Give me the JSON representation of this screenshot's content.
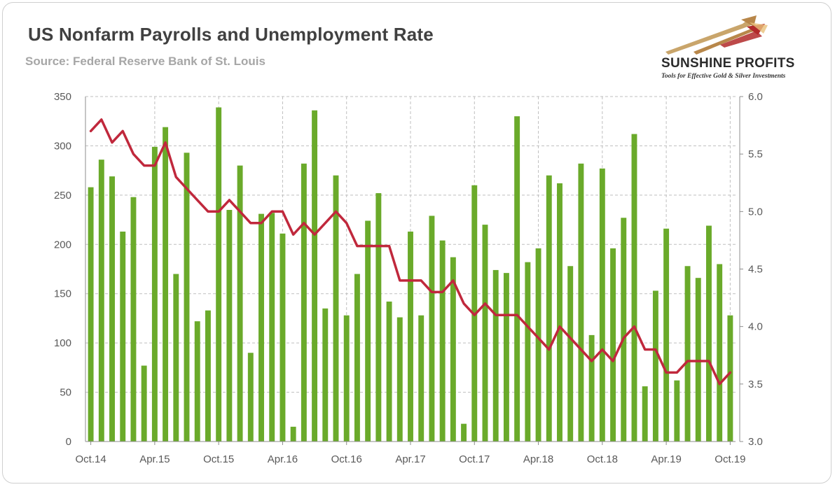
{
  "header": {
    "title": "US Nonfarm Payrolls and Unemployment Rate",
    "subtitle": "Source: Federal Reserve Bank of St. Louis"
  },
  "logo": {
    "name": "SUNSHINE PROFITS",
    "tagline": "Tools for Effective Gold & Silver Investments"
  },
  "chart_data": {
    "type": "bar",
    "x_tick_labels": [
      "Oct.14",
      "Apr.15",
      "Oct.15",
      "Apr.16",
      "Oct.16",
      "Apr.17",
      "Oct.17",
      "Apr.18",
      "Oct.18",
      "Apr.19",
      "Oct.19"
    ],
    "y_left": {
      "ylim": [
        0,
        350
      ],
      "ticks": [
        0,
        50,
        100,
        150,
        200,
        250,
        300,
        350
      ]
    },
    "y_right": {
      "ylim": [
        3.0,
        6.0
      ],
      "ticks": [
        "3.0",
        "3.5",
        "4.0",
        "4.5",
        "5.0",
        "5.5",
        "6.0"
      ]
    },
    "grid": true,
    "colors": {
      "bars": "#6aaa2a",
      "line": "#c0283c",
      "grid": "#bfbfbf"
    },
    "series": [
      {
        "type": "bar",
        "axis": "left",
        "values": [
          258,
          286,
          269,
          213,
          248,
          77,
          299,
          319,
          170,
          293,
          122,
          133,
          339,
          235,
          280,
          90,
          231,
          232,
          211,
          15,
          282,
          336,
          135,
          270,
          128,
          170,
          224,
          252,
          142,
          126,
          213,
          128,
          229,
          204,
          187,
          18,
          260,
          220,
          174,
          171,
          330,
          182,
          196,
          270,
          262,
          178,
          282,
          108,
          277,
          196,
          227,
          312,
          56,
          153,
          216,
          62,
          178,
          166,
          219,
          180,
          128
        ]
      },
      {
        "type": "line",
        "axis": "right",
        "values": [
          5.7,
          5.8,
          5.6,
          5.7,
          5.5,
          5.4,
          5.4,
          5.6,
          5.3,
          5.2,
          5.1,
          5.0,
          5.0,
          5.1,
          5.0,
          4.9,
          4.9,
          5.0,
          5.0,
          4.8,
          4.9,
          4.8,
          4.9,
          5.0,
          4.9,
          4.7,
          4.7,
          4.7,
          4.7,
          4.4,
          4.4,
          4.4,
          4.3,
          4.3,
          4.4,
          4.2,
          4.1,
          4.2,
          4.1,
          4.1,
          4.1,
          4.0,
          3.9,
          3.8,
          4.0,
          3.9,
          3.8,
          3.7,
          3.8,
          3.7,
          3.9,
          4.0,
          3.8,
          3.8,
          3.6,
          3.6,
          3.7,
          3.7,
          3.7,
          3.5,
          3.6
        ]
      }
    ]
  }
}
